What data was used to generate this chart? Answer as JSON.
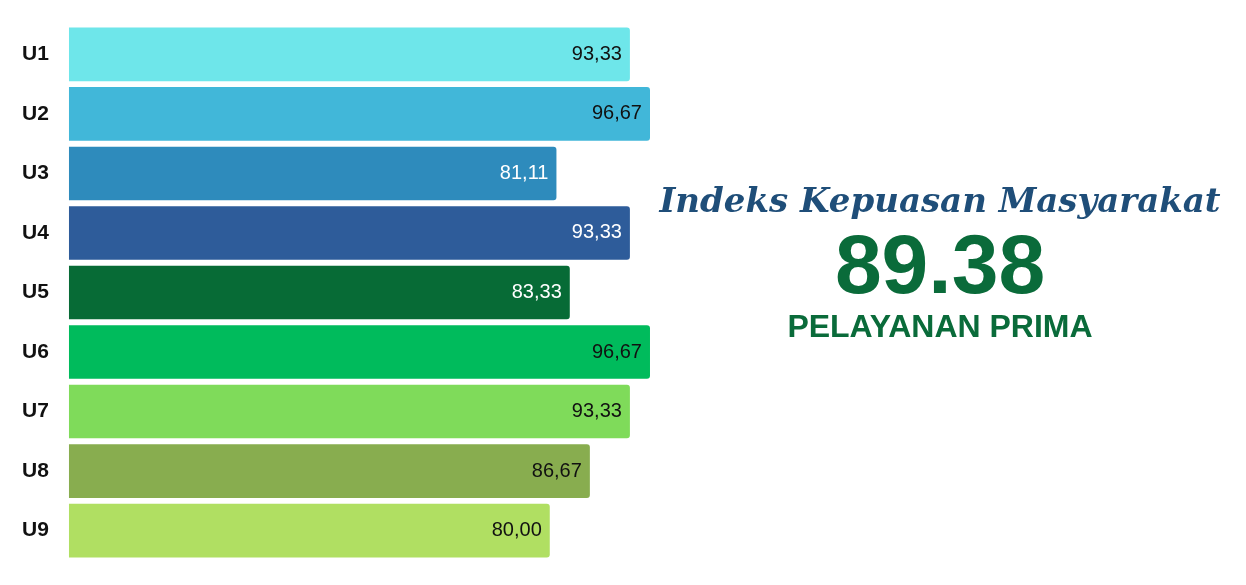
{
  "chart_data": {
    "type": "bar",
    "orientation": "horizontal",
    "categories": [
      "U1",
      "U2",
      "U3",
      "U4",
      "U5",
      "U6",
      "U7",
      "U8",
      "U9"
    ],
    "values": [
      93.33,
      96.67,
      81.11,
      93.33,
      83.33,
      96.67,
      93.33,
      86.67,
      80.0
    ],
    "value_labels": [
      "93,33",
      "96,67",
      "81,11",
      "93,33",
      "83,33",
      "96,67",
      "93,33",
      "86,67",
      "80,00"
    ],
    "colors": [
      "#6ee6ea",
      "#41b7d9",
      "#2e8bbc",
      "#2e5c9a",
      "#076b36",
      "#00bb5c",
      "#7fdb5a",
      "#88ad4f",
      "#b0df62"
    ],
    "annotations": [
      "Indeks Kepuasan Masyarakat",
      "89.38",
      "PELAYANAN PRIMA"
    ]
  }
}
